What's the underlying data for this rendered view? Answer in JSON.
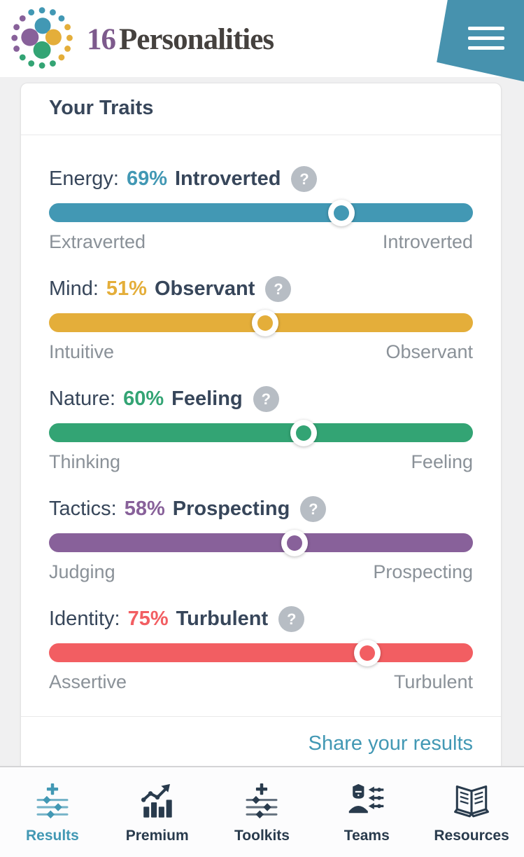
{
  "colors": {
    "teal": "#4298B4",
    "amber": "#E4AE3A",
    "green": "#33A474",
    "purple": "#88619A",
    "red": "#F25E62",
    "nav_dark": "#293B4D",
    "flag_teal": "#4792AE"
  },
  "header": {
    "brand_number": "16",
    "brand_name": "Personalities",
    "menu_icon": "hamburger-icon",
    "logo_icon": "dot-circle-logo",
    "logo_palette": [
      "#4298B4",
      "#88619A",
      "#E4AE3A",
      "#33A474"
    ]
  },
  "card": {
    "title": "Your Traits",
    "help_glyph": "?",
    "help_icon": "question-mark-icon",
    "share_label": "Share your results"
  },
  "traits": [
    {
      "name_label": "Energy:",
      "percent": 69,
      "value_label": "69%",
      "dominant": "Introverted",
      "scale_left": "Extraverted",
      "scale_right": "Introverted",
      "color": "#4298B4"
    },
    {
      "name_label": "Mind:",
      "percent": 51,
      "value_label": "51%",
      "dominant": "Observant",
      "scale_left": "Intuitive",
      "scale_right": "Observant",
      "color": "#E4AE3A"
    },
    {
      "name_label": "Nature:",
      "percent": 60,
      "value_label": "60%",
      "dominant": "Feeling",
      "scale_left": "Thinking",
      "scale_right": "Feeling",
      "color": "#33A474"
    },
    {
      "name_label": "Tactics:",
      "percent": 58,
      "value_label": "58%",
      "dominant": "Prospecting",
      "scale_left": "Judging",
      "scale_right": "Prospecting",
      "color": "#88619A"
    },
    {
      "name_label": "Identity:",
      "percent": 75,
      "value_label": "75%",
      "dominant": "Turbulent",
      "scale_left": "Assertive",
      "scale_right": "Turbulent",
      "color": "#F25E62"
    }
  ],
  "nav": {
    "items": [
      {
        "label": "Results",
        "icon": "sliders-plus-icon",
        "active": true
      },
      {
        "label": "Premium",
        "icon": "chart-growth-icon",
        "active": false
      },
      {
        "label": "Toolkits",
        "icon": "sliders-plus-icon",
        "active": false
      },
      {
        "label": "Teams",
        "icon": "person-list-icon",
        "active": false
      },
      {
        "label": "Resources",
        "icon": "open-book-icon",
        "active": false
      }
    ]
  }
}
